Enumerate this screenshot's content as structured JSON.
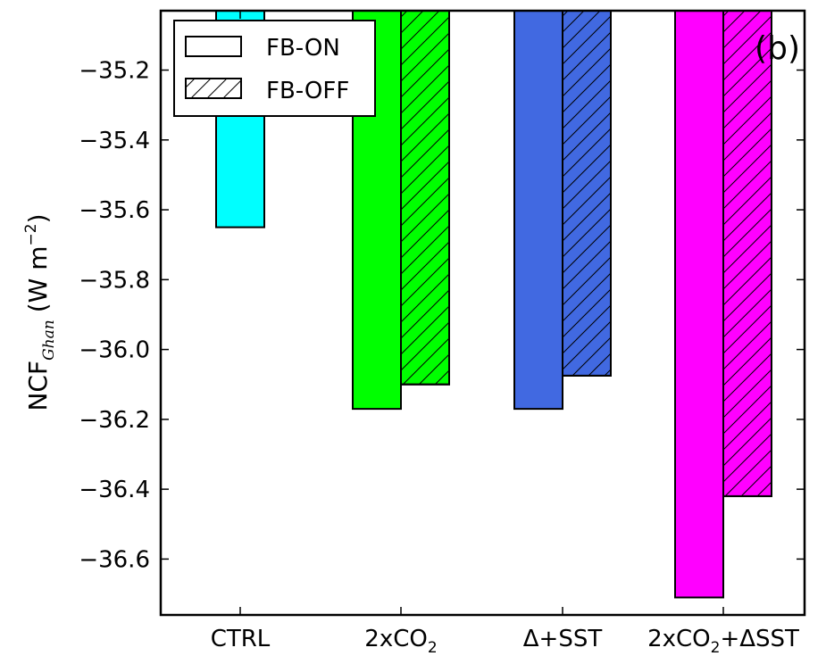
{
  "chart_data": {
    "type": "bar",
    "panel_label": "(b)",
    "ylabel": {
      "main": "NCF",
      "subscript": "Ghan",
      "units_prefix": "(W m",
      "units_superscript": "−2",
      "units_suffix": ")"
    },
    "ylim": [
      -36.76,
      -35.03
    ],
    "yticks": [
      -35.2,
      -35.4,
      -35.6,
      -35.8,
      -36.0,
      -36.2,
      -36.4,
      -36.6
    ],
    "ytick_labels": [
      "−35.2",
      "−35.4",
      "−35.6",
      "−35.8",
      "−36.0",
      "−36.2",
      "−36.4",
      "−36.6"
    ],
    "categories": [
      {
        "main": "CTRL",
        "sub": "",
        "suffix": ""
      },
      {
        "main": "2xCO",
        "sub": "2",
        "suffix": ""
      },
      {
        "main": "Δ+SST",
        "sub": "",
        "suffix": ""
      },
      {
        "main": "2xCO",
        "sub": "2",
        "suffix": "+ΔSST"
      }
    ],
    "category_colors": [
      "#00ffff",
      "#00ff00",
      "#4169e1",
      "#ff00ff"
    ],
    "series": [
      {
        "name": "FB-ON",
        "hatch": false,
        "values": [
          -35.65,
          -36.17,
          -36.17,
          -36.71
        ]
      },
      {
        "name": "FB-OFF",
        "hatch": true,
        "values": [
          null,
          -36.1,
          -36.075,
          -36.42
        ]
      }
    ],
    "legend": {
      "position": "top-left"
    },
    "grid": false
  }
}
